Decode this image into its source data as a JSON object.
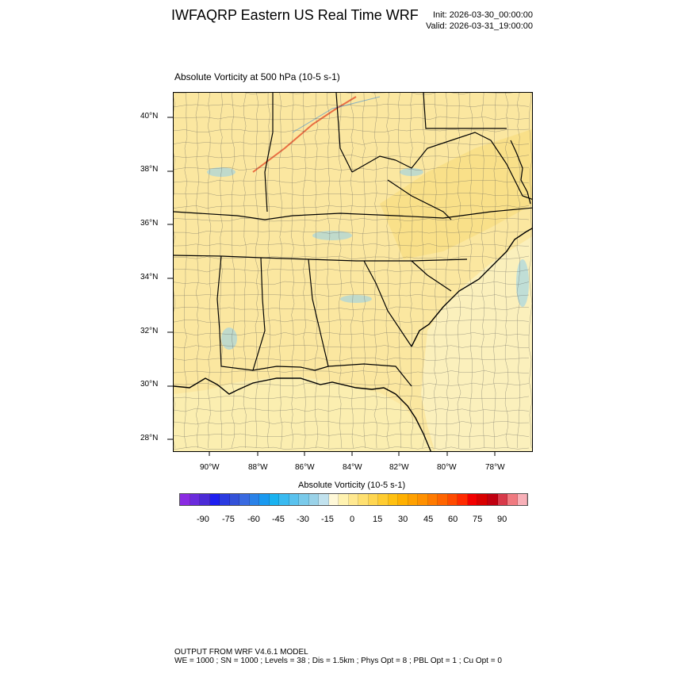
{
  "header": {
    "title": "IWFAQRP Eastern US Real Time WRF",
    "init": "Init: 2026-03-30_00:00:00",
    "valid": "Valid: 2026-03-31_19:00:00"
  },
  "map": {
    "subtitle": "Absolute Vorticity at 500 hPa   (10-5 s-1)",
    "lat_labels": [
      "40°N",
      "38°N",
      "36°N",
      "34°N",
      "32°N",
      "30°N",
      "28°N"
    ],
    "lon_labels": [
      "90°W",
      "88°W",
      "86°W",
      "84°W",
      "82°W",
      "80°W",
      "78°W"
    ],
    "base_color": "#fbe7a0",
    "ocean_color": "#fbeeb0"
  },
  "colorbar": {
    "title": "Absolute Vorticity  (10-5 s-1)",
    "tick_labels": [
      "-90",
      "-75",
      "-60",
      "-45",
      "-30",
      "-15",
      "0",
      "15",
      "30",
      "45",
      "60",
      "75",
      "90"
    ],
    "colors": [
      "#8a2be2",
      "#6a2bdc",
      "#4b2bd6",
      "#1e1ef0",
      "#2a3ae0",
      "#3452d8",
      "#3a6ae0",
      "#2a82e8",
      "#1a9af0",
      "#1ab2f0",
      "#3abaf0",
      "#5ac2ee",
      "#7acaea",
      "#9ad2e8",
      "#c2e2ee",
      "#fff8d8",
      "#fff2b0",
      "#ffe890",
      "#ffe070",
      "#ffd650",
      "#ffcc30",
      "#ffc010",
      "#ffb000",
      "#ffa000",
      "#ff9000",
      "#ff7a00",
      "#ff6400",
      "#ff4a00",
      "#ff2a00",
      "#f20000",
      "#d80000",
      "#c00010",
      "#d83a4a",
      "#f07a80",
      "#f8b0b8"
    ]
  },
  "footer": {
    "line1": "OUTPUT FROM WRF V4.6.1 MODEL",
    "line2": "WE = 1000 ; SN = 1000 ; Levels = 38 ; Dis = 1.5km ; Phys Opt = 8 ; PBL Opt = 1 ; Cu Opt = 0"
  }
}
